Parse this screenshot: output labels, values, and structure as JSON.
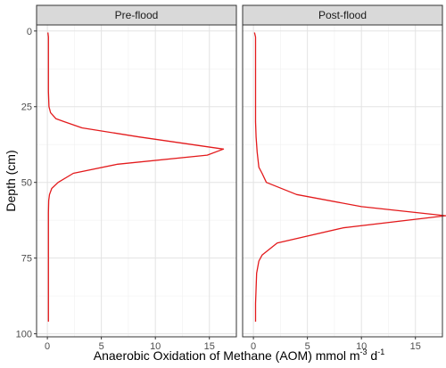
{
  "chart_data": {
    "type": "line",
    "xlabel": "Anaerobic Oxidation of Methane (AOM) mmol m",
    "xlabel_sup1": "-3",
    "xlabel_mid": " d",
    "xlabel_sup2": "-1",
    "ylabel": "Depth (cm)",
    "xlim": [
      -1,
      17.5
    ],
    "ylim": [
      0,
      100
    ],
    "y_reversed": true,
    "x_ticks": [
      0,
      5,
      10,
      15
    ],
    "y_ticks": [
      0,
      25,
      50,
      75,
      100
    ],
    "grid": true,
    "line_color": "#e31a1c",
    "panels": [
      {
        "name": "Pre-flood",
        "x": [
          0.05,
          0.1,
          0.1,
          0.1,
          0.1,
          0.1,
          0.15,
          0.3,
          0.8,
          1.6,
          3.2,
          8.5,
          16.3,
          14.8,
          6.5,
          2.4,
          1.0,
          0.4,
          0.2,
          0.12,
          0.1,
          0.1,
          0.1,
          0.1,
          0.1,
          0.1,
          0.1
        ],
        "y": [
          0.5,
          2,
          5,
          10,
          15,
          20,
          25,
          27,
          29,
          30,
          32,
          35,
          39,
          41,
          44,
          47,
          50,
          52,
          54,
          56,
          60,
          65,
          70,
          75,
          80,
          90,
          96
        ]
      },
      {
        "name": "Post-flood",
        "x": [
          0.1,
          0.2,
          0.2,
          0.2,
          0.2,
          0.2,
          0.2,
          0.2,
          0.25,
          0.35,
          0.5,
          0.8,
          1.2,
          4.0,
          10.0,
          17.8,
          8.3,
          2.2,
          0.8,
          0.5,
          0.3,
          0.25,
          0.2,
          0.2
        ],
        "y": [
          0.5,
          2,
          5,
          10,
          15,
          20,
          25,
          30,
          35,
          40,
          45,
          47,
          50,
          54,
          58,
          61,
          65,
          70,
          74,
          76,
          80,
          85,
          90,
          96
        ]
      }
    ]
  }
}
